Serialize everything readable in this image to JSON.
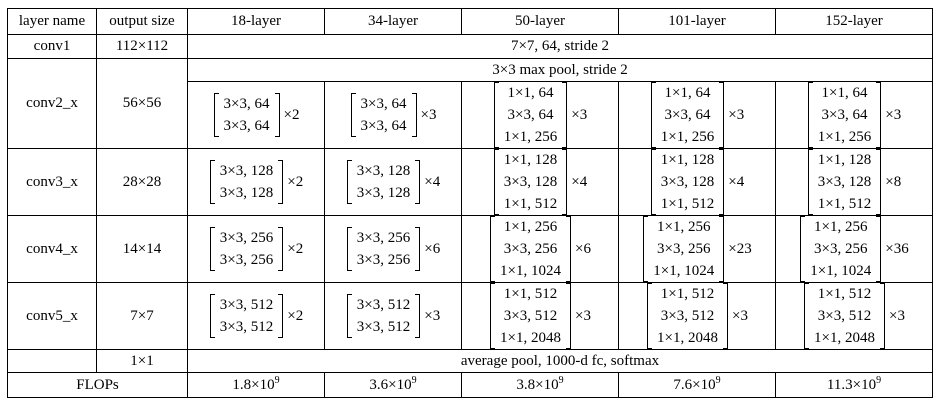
{
  "headers": [
    "layer name",
    "output size",
    "18-layer",
    "34-layer",
    "50-layer",
    "101-layer",
    "152-layer"
  ],
  "conv1": {
    "name": "conv1",
    "output": "112×112",
    "spec": "7×7, 64, stride 2"
  },
  "pool": {
    "spec": "3×3 max pool, stride 2"
  },
  "stages": [
    {
      "name": "conv2_x",
      "output": "56×56",
      "cells": [
        {
          "lines": [
            "3×3, 64",
            "3×3, 64"
          ],
          "mult": "×2"
        },
        {
          "lines": [
            "3×3, 64",
            "3×3, 64"
          ],
          "mult": "×3"
        },
        {
          "lines": [
            "1×1, 64",
            "3×3, 64",
            "1×1, 256"
          ],
          "mult": "×3"
        },
        {
          "lines": [
            "1×1, 64",
            "3×3, 64",
            "1×1, 256"
          ],
          "mult": "×3"
        },
        {
          "lines": [
            "1×1, 64",
            "3×3, 64",
            "1×1, 256"
          ],
          "mult": "×3"
        }
      ]
    },
    {
      "name": "conv3_x",
      "output": "28×28",
      "cells": [
        {
          "lines": [
            "3×3, 128",
            "3×3, 128"
          ],
          "mult": "×2"
        },
        {
          "lines": [
            "3×3, 128",
            "3×3, 128"
          ],
          "mult": "×4"
        },
        {
          "lines": [
            "1×1, 128",
            "3×3, 128",
            "1×1, 512"
          ],
          "mult": "×4"
        },
        {
          "lines": [
            "1×1, 128",
            "3×3, 128",
            "1×1, 512"
          ],
          "mult": "×4"
        },
        {
          "lines": [
            "1×1, 128",
            "3×3, 128",
            "1×1, 512"
          ],
          "mult": "×8"
        }
      ]
    },
    {
      "name": "conv4_x",
      "output": "14×14",
      "cells": [
        {
          "lines": [
            "3×3, 256",
            "3×3, 256"
          ],
          "mult": "×2"
        },
        {
          "lines": [
            "3×3, 256",
            "3×3, 256"
          ],
          "mult": "×6"
        },
        {
          "lines": [
            "1×1, 256",
            "3×3, 256",
            "1×1, 1024"
          ],
          "mult": "×6"
        },
        {
          "lines": [
            "1×1, 256",
            "3×3, 256",
            "1×1, 1024"
          ],
          "mult": "×23"
        },
        {
          "lines": [
            "1×1, 256",
            "3×3, 256",
            "1×1, 1024"
          ],
          "mult": "×36"
        }
      ]
    },
    {
      "name": "conv5_x",
      "output": "7×7",
      "cells": [
        {
          "lines": [
            "3×3, 512",
            "3×3, 512"
          ],
          "mult": "×2"
        },
        {
          "lines": [
            "3×3, 512",
            "3×3, 512"
          ],
          "mult": "×3"
        },
        {
          "lines": [
            "1×1, 512",
            "3×3, 512",
            "1×1, 2048"
          ],
          "mult": "×3"
        },
        {
          "lines": [
            "1×1, 512",
            "3×3, 512",
            "1×1, 2048"
          ],
          "mult": "×3"
        },
        {
          "lines": [
            "1×1, 512",
            "3×3, 512",
            "1×1, 2048"
          ],
          "mult": "×3"
        }
      ]
    }
  ],
  "avg": {
    "output": "1×1",
    "spec": "average pool, 1000-d fc, softmax"
  },
  "flops": {
    "label": "FLOPs",
    "mantissas": [
      "1.8×10",
      "3.6×10",
      "3.8×10",
      "7.6×10",
      "11.3×10"
    ],
    "exponent": "9"
  }
}
